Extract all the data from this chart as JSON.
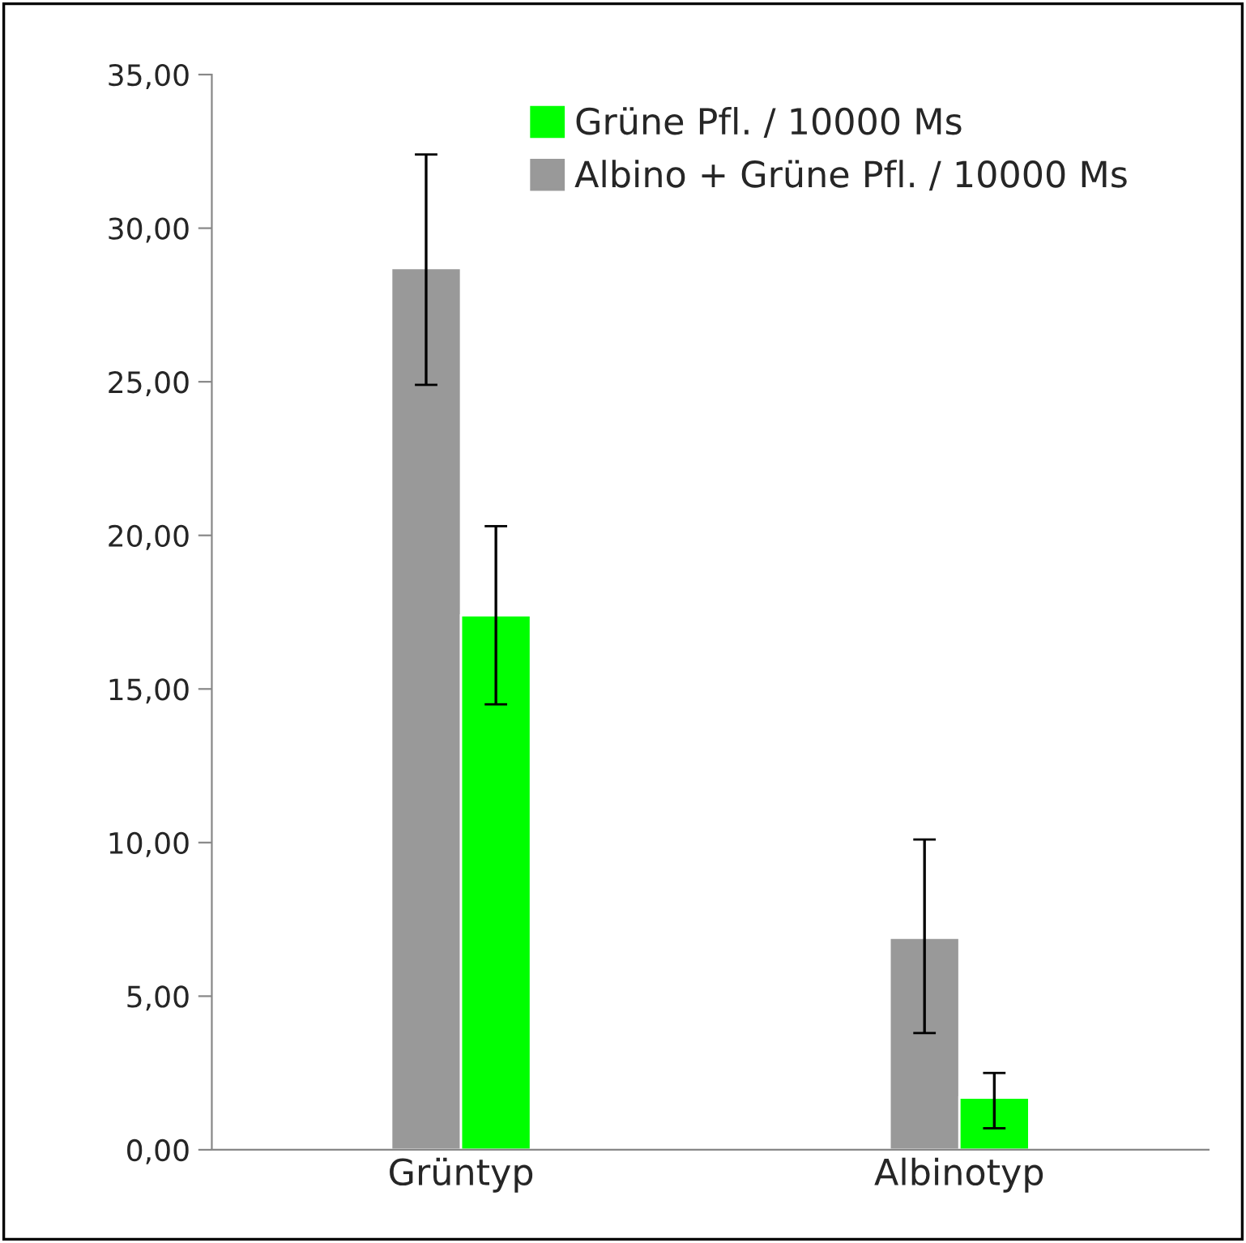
{
  "chart_data": {
    "type": "bar",
    "categories": [
      "Grüntyp",
      "Albinotyp"
    ],
    "series": [
      {
        "name": "Albino + Grüne Pfl. / 10000 Ms",
        "color": "#999999",
        "values": [
          28.7,
          6.9
        ],
        "errors": [
          [
            24.9,
            32.4
          ],
          [
            3.8,
            10.1
          ]
        ]
      },
      {
        "name": "Grüne Pfl. / 10000 Ms",
        "color": "#00ff00",
        "values": [
          17.4,
          1.7
        ],
        "errors": [
          [
            14.5,
            20.3
          ],
          [
            0.7,
            2.5
          ]
        ]
      }
    ],
    "ylim": [
      0,
      35
    ],
    "yticks": [
      {
        "value": 0,
        "label": "0,00"
      },
      {
        "value": 5,
        "label": "5,00"
      },
      {
        "value": 10,
        "label": "10,00"
      },
      {
        "value": 15,
        "label": "15,00"
      },
      {
        "value": 20,
        "label": "20,00"
      },
      {
        "value": 25,
        "label": "25,00"
      },
      {
        "value": 30,
        "label": "30,00"
      },
      {
        "value": 35,
        "label": "35,00"
      }
    ],
    "grid": false,
    "legend": "top"
  }
}
